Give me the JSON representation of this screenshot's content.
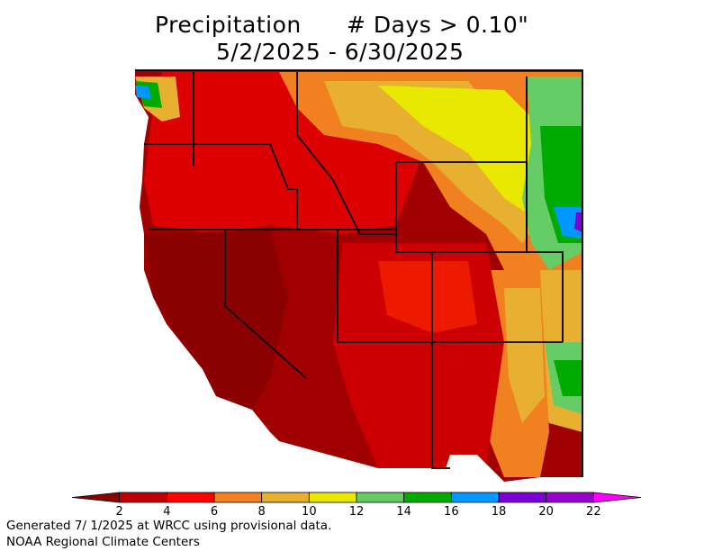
{
  "header": {
    "title_left": "Precipitation",
    "title_right": "# Days > 0.10\"",
    "date_range": "5/2/2025 - 6/30/2025"
  },
  "legend": {
    "colors": [
      "#8b0000",
      "#c00000",
      "#ff0000",
      "#f08020",
      "#e8b030",
      "#e8e800",
      "#66cc66",
      "#00aa00",
      "#0099ff",
      "#7b00d6",
      "#9900cc",
      "#ff00ff"
    ],
    "tick_labels": [
      "2",
      "4",
      "6",
      "8",
      "10",
      "12",
      "14",
      "16",
      "18",
      "20",
      "22"
    ]
  },
  "footer": {
    "line1": "Generated 7/ 1/2025 at WRCC using provisional data.",
    "line2": "NOAA Regional Climate Centers"
  }
}
